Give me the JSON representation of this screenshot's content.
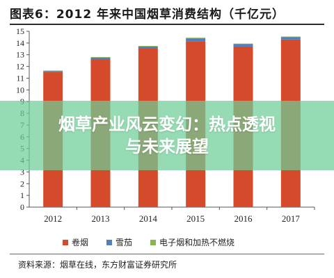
{
  "title": "图表6：2012 年来中国烟草消费结构（千亿元）",
  "source": "资料来源：烟草在线，东方财富证券研究所",
  "banner": {
    "line1": "烟草产业风云变幻：热点透视",
    "line2": "与未来展望"
  },
  "colors": {
    "juanyan": "#d64a2c",
    "xuejia": "#4f80bd",
    "dianzi": "#8cb356"
  },
  "chart_data": {
    "type": "bar",
    "stacked": true,
    "categories": [
      "2012",
      "2013",
      "2014",
      "2015",
      "2016",
      "2017"
    ],
    "series": [
      {
        "name": "卷烟",
        "values": [
          11.5,
          12.6,
          13.55,
          14.15,
          13.7,
          14.3
        ],
        "color": "#d64a2c"
      },
      {
        "name": "雪茄",
        "values": [
          0.1,
          0.15,
          0.15,
          0.25,
          0.2,
          0.2
        ],
        "color": "#4f80bd"
      },
      {
        "name": "电子烟和加热不燃烧",
        "values": [
          0.05,
          0.05,
          0.05,
          0.05,
          0.05,
          0.05
        ],
        "color": "#8cb356"
      }
    ],
    "yticks": [
      "0",
      "1",
      "2",
      "3",
      "4",
      "5",
      "6",
      "7",
      "8",
      "9",
      "10",
      "11",
      "12",
      "13",
      "14",
      "15"
    ],
    "ylim": [
      0,
      15
    ],
    "grid": false,
    "legend_position": "bottom"
  }
}
